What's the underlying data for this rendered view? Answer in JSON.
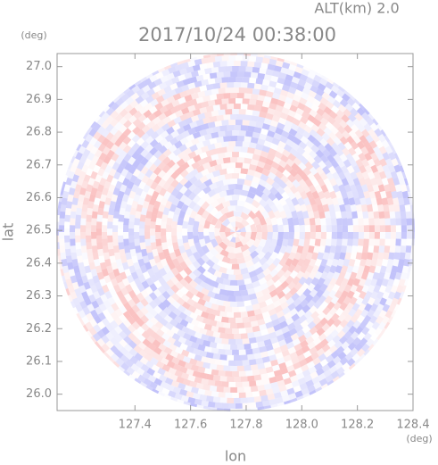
{
  "chart_data": {
    "type": "radar-field",
    "altitude_label": "ALT(km) 2.0",
    "title": "2017/10/24 00:38:00",
    "x_label": "lon",
    "y_label": "lat",
    "x_unit": "(deg)",
    "y_unit": "(deg)",
    "xlim": [
      127.12,
      128.4
    ],
    "ylim": [
      25.95,
      27.04
    ],
    "xticks": [
      127.4,
      127.6,
      127.8,
      {
        "value": 128,
        "label": "128.0"
      },
      128.2,
      128.4
    ],
    "yticks": [
      {
        "value": 26,
        "label": "26.0"
      },
      26.1,
      26.2,
      26.3,
      26.4,
      26.5,
      26.6,
      26.7,
      26.8,
      26.9,
      {
        "value": 27,
        "label": "27.0"
      }
    ]
  }
}
